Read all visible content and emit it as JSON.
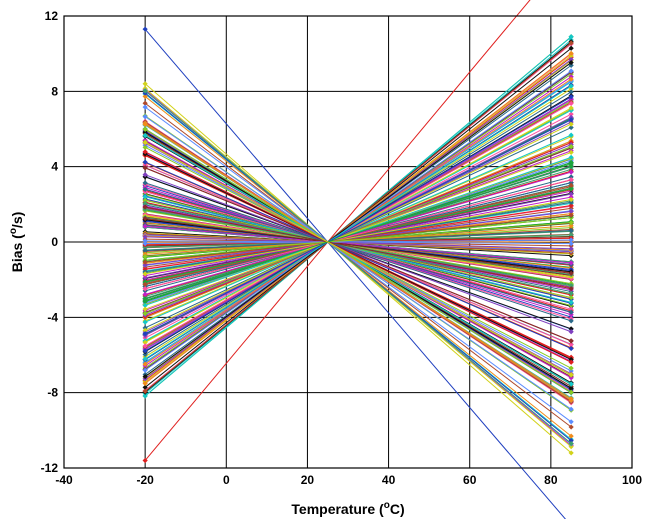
{
  "chart_data": {
    "type": "line",
    "title": "",
    "xlabel": {
      "prefix": "Temperature (",
      "sup": "o",
      "suffix": "C)"
    },
    "ylabel": {
      "prefix": "Bias (",
      "sup": "o",
      "suffix": "/s)"
    },
    "xlim": [
      -40,
      100
    ],
    "ylim": [
      -12,
      12
    ],
    "xticks": [
      -40,
      -20,
      0,
      20,
      40,
      60,
      80,
      100
    ],
    "yticks": [
      -12,
      -8,
      -4,
      0,
      4,
      8,
      12
    ],
    "grid": true,
    "legend": "none",
    "pivot": {
      "x": 25,
      "y": 0
    },
    "x_points": [
      -20,
      85
    ],
    "series_count": 260,
    "bias_at_minus20_range": [
      -11.6,
      11.3
    ],
    "bias_at_85_range": [
      -11.2,
      10.9
    ],
    "marker": "diamond",
    "colors": [
      "#1f3fbf",
      "#e0201f",
      "#1aa53a",
      "#d2d21a",
      "#14c8c8",
      "#c01fc8",
      "#101010",
      "#f08c1a",
      "#7f3fbf",
      "#3f9f6f",
      "#b04a2a",
      "#5a8cff",
      "#ff4fa0",
      "#88cc22",
      "#2a6a8a",
      "#8a2a2a"
    ]
  }
}
